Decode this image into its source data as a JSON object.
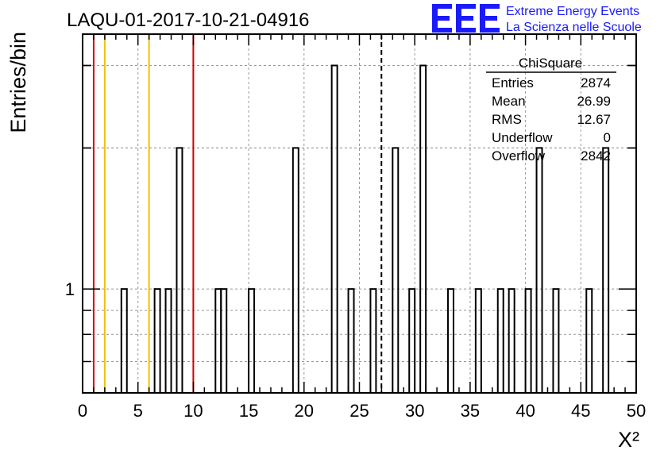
{
  "chart_data": {
    "type": "bar",
    "title": "LAQU-01-2017-10-21-04916",
    "xlabel": "X²",
    "ylabel": "Entries/bin",
    "xlim": [
      0,
      50
    ],
    "ylog": true,
    "ylim": [
      0.6,
      3.5
    ],
    "grid": true,
    "x_ticks": [
      0,
      5,
      10,
      15,
      20,
      25,
      30,
      35,
      40,
      45,
      50
    ],
    "y_tick_labels": [
      {
        "value": 1,
        "label": "1"
      }
    ],
    "bin_width": 0.5,
    "bins": [
      {
        "x": 3.5,
        "value": 1
      },
      {
        "x": 6.5,
        "value": 1
      },
      {
        "x": 7.5,
        "value": 1
      },
      {
        "x": 8.5,
        "value": 2
      },
      {
        "x": 12.0,
        "value": 1
      },
      {
        "x": 12.5,
        "value": 1
      },
      {
        "x": 15.0,
        "value": 1
      },
      {
        "x": 19.0,
        "value": 2
      },
      {
        "x": 22.5,
        "value": 3
      },
      {
        "x": 24.0,
        "value": 1
      },
      {
        "x": 26.0,
        "value": 1
      },
      {
        "x": 28.0,
        "value": 2
      },
      {
        "x": 29.5,
        "value": 1
      },
      {
        "x": 30.5,
        "value": 3
      },
      {
        "x": 33.0,
        "value": 1
      },
      {
        "x": 35.5,
        "value": 1
      },
      {
        "x": 37.5,
        "value": 1
      },
      {
        "x": 38.5,
        "value": 1
      },
      {
        "x": 40.0,
        "value": 1
      },
      {
        "x": 41.0,
        "value": 2
      },
      {
        "x": 42.5,
        "value": 1
      },
      {
        "x": 45.5,
        "value": 1
      },
      {
        "x": 47.0,
        "value": 2
      }
    ],
    "reference_lines": [
      {
        "x": 1,
        "color": "#d40000",
        "style": "solid"
      },
      {
        "x": 2,
        "color": "#f0c000",
        "style": "solid"
      },
      {
        "x": 6,
        "color": "#f0c000",
        "style": "solid"
      },
      {
        "x": 10,
        "color": "#d40000",
        "style": "solid"
      },
      {
        "x": 26.99,
        "color": "#000000",
        "style": "dashed"
      }
    ],
    "stats_box": {
      "title": "ChiSquare",
      "rows": [
        {
          "label": "Entries",
          "value": "2874"
        },
        {
          "label": "Mean",
          "value": "26.99"
        },
        {
          "label": "RMS",
          "value": "12.67"
        },
        {
          "label": "Underflow",
          "value": "0"
        },
        {
          "label": "Overflow",
          "value": "2842"
        }
      ],
      "placement": "top-right"
    }
  },
  "logo": {
    "mark": "EEE",
    "line1": "Extreme Energy Events",
    "line2": "La Scienza nelle Scuole",
    "color": "#1a1aff"
  }
}
